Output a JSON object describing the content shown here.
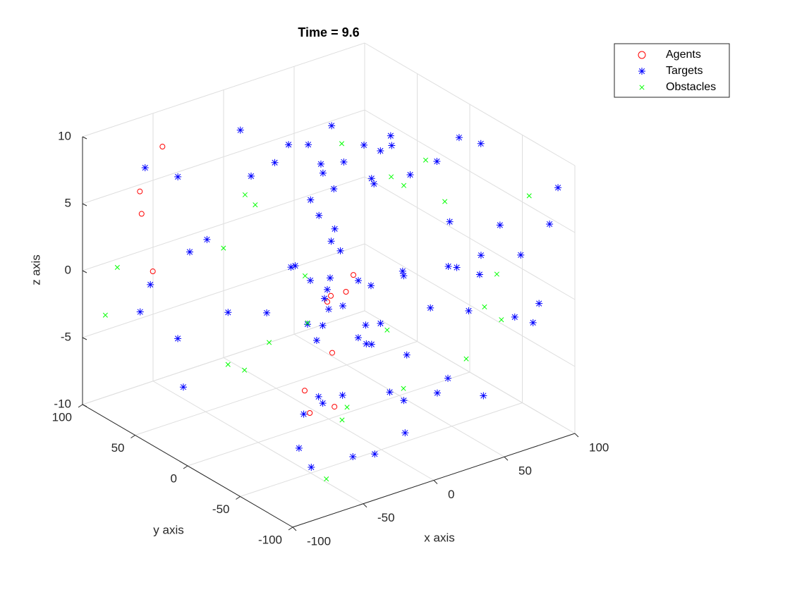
{
  "chart_data": {
    "type": "scatter3d",
    "title": "Time = 9.6",
    "xlabel": "x axis",
    "ylabel": "y axis",
    "zlabel": "z axis",
    "xlim": [
      -100,
      100
    ],
    "ylim": [
      -100,
      100
    ],
    "zlim": [
      -10,
      10
    ],
    "xticks": [
      -100,
      -50,
      0,
      50,
      100
    ],
    "yticks": [
      -100,
      -50,
      0,
      50,
      100
    ],
    "zticks": [
      -10,
      -5,
      0,
      5,
      10
    ],
    "grid": true,
    "legend": "top-right",
    "series": [
      {
        "name": "Agents",
        "color": "#ff0000",
        "marker": "circle",
        "x": [
          -56,
          -75,
          -76,
          -74,
          19,
          13,
          3,
          2,
          1,
          -20,
          -19,
          -35
        ],
        "y": [
          83,
          79,
          76,
          68,
          2,
          1,
          2,
          4,
          -2,
          -4,
          -31,
          -29
        ],
        "z": [
          8.5,
          6,
          4.5,
          0.5,
          0,
          -1,
          -1,
          -1.5,
          -5,
          -7,
          -7,
          -7
        ]
      },
      {
        "name": "Targets",
        "color": "#0000ff",
        "marker": "asterisk",
        "x": [
          -6,
          49,
          -75,
          -60,
          17,
          28,
          2,
          28,
          42,
          25,
          60,
          62,
          70,
          67,
          49,
          47,
          60,
          70,
          85,
          87,
          -17,
          26,
          8,
          8,
          11,
          4,
          9,
          56,
          73,
          94,
          91,
          67,
          81,
          -62,
          -55,
          -75,
          -80,
          -66,
          -49,
          -35,
          -26,
          -23,
          1,
          -13,
          21,
          -1,
          27,
          -3,
          39,
          39,
          0,
          10,
          -15,
          -5,
          -13,
          12,
          21,
          14,
          17,
          30,
          33,
          49,
          55,
          58,
          66,
          62,
          79,
          88,
          86,
          9,
          13,
          36,
          48,
          62,
          -20,
          -34,
          -34,
          -49,
          2,
          -65,
          -66,
          -38,
          -24,
          -71
        ],
        "y": [
          76,
          63,
          74,
          63,
          61,
          57,
          54,
          45,
          42,
          39,
          47,
          34,
          35,
          30,
          25,
          20,
          3,
          -9,
          -10,
          -28,
          51,
          30,
          28,
          20,
          9,
          3,
          1,
          -40,
          -65,
          -92,
          -88,
          -55,
          -74,
          49,
          42,
          69,
          72,
          55,
          30,
          12,
          1,
          1,
          0,
          0,
          0,
          0,
          -4,
          0,
          -18,
          -19,
          0,
          0,
          0,
          -1,
          -6,
          -12,
          -7,
          -17,
          -18,
          -9,
          -30,
          -31,
          -40,
          -44,
          -55,
          -50,
          -71,
          -82,
          -79,
          -46,
          -54,
          -55,
          -49,
          -64,
          -40,
          -36,
          -40,
          -42,
          -70,
          -59,
          -72,
          -74,
          -76,
          43
        ],
        "z": [
          8.3,
          7.3,
          8,
          7.3,
          7.1,
          6.9,
          6.6,
          6,
          5.8,
          5.7,
          6.2,
          6.3,
          7.1,
          6.7,
          5.1,
          5,
          6,
          7.2,
          8.5,
          8.8,
          6.4,
          4.9,
          4.8,
          4,
          3.4,
          3,
          2.2,
          4.6,
          4.9,
          8.2,
          5.4,
          2.4,
          2.8,
          2.4,
          3.4,
          -0.5,
          -2.5,
          -4.2,
          -1.7,
          -1.4,
          2.2,
          2.2,
          0.5,
          0.8,
          -0.4,
          -0.3,
          -0.8,
          -0.9,
          0.5,
          0.2,
          -1.8,
          -1.9,
          -2.4,
          -2.8,
          -3.4,
          -3.8,
          -3.4,
          -4.1,
          -4.2,
          -3.5,
          -5,
          -2,
          1.3,
          1.3,
          1,
          -1.8,
          -1.9,
          -0.7,
          -2.2,
          -6.2,
          -6.6,
          -6.8,
          -6.4,
          -7.5,
          -5.7,
          -5.5,
          -5.8,
          -6,
          -7.9,
          -7.2,
          -8,
          -8.1,
          -8.3,
          -7.1
        ]
      },
      {
        "name": "Obstacles",
        "color": "#00ff00",
        "marker": "cross",
        "x": [
          -88,
          -92,
          -50,
          -28,
          -26,
          48,
          54,
          54,
          68,
          57,
          84,
          -16,
          -34,
          -52,
          -50,
          31,
          -15,
          73,
          68,
          74,
          61,
          18,
          -22,
          -30,
          -62
        ],
        "y": [
          83,
          89,
          33,
          42,
          35,
          52,
          13,
          1,
          -1,
          -34,
          -78,
          1,
          11,
          26,
          13,
          -14,
          0,
          -62,
          -57,
          -65,
          -49,
          -47,
          -47,
          -53,
          -81
        ],
        "z": [
          0.6,
          -3.1,
          3,
          5.8,
          5.3,
          6.5,
          5.6,
          5.5,
          7,
          5.8,
          7.3,
          1.2,
          -3.6,
          -5.3,
          -5.2,
          -3.8,
          -2.3,
          1.1,
          -1.4,
          -2.2,
          -5.4,
          -6.2,
          -6.2,
          -6.6,
          -8.6
        ]
      }
    ]
  }
}
